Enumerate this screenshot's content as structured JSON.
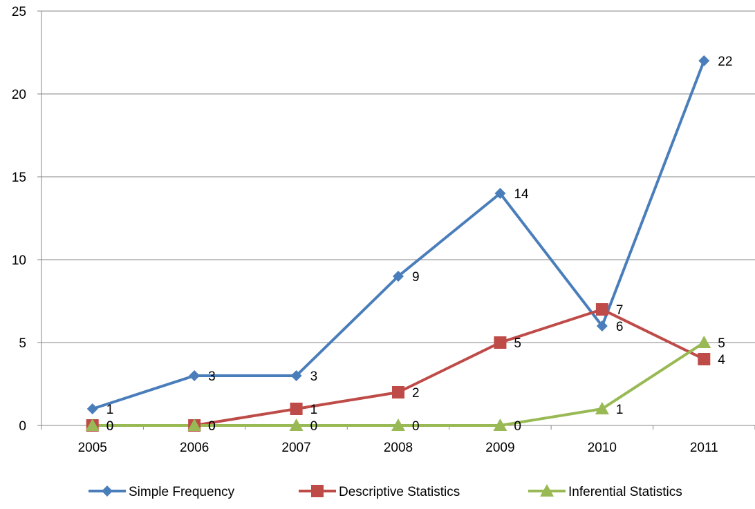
{
  "chart_data": {
    "type": "line",
    "title": "",
    "xlabel": "",
    "ylabel": "",
    "categories": [
      "2005",
      "2006",
      "2007",
      "2008",
      "2009",
      "2010",
      "2011"
    ],
    "ylim": [
      0,
      25
    ],
    "y_ticks": [
      "0",
      "5",
      "10",
      "15",
      "20",
      "25"
    ],
    "grid": "horizontal",
    "legend_position": "bottom",
    "series": [
      {
        "name": "Simple Frequency",
        "values": [
          1,
          3,
          3,
          9,
          14,
          6,
          22
        ],
        "color": "#4a7ebb",
        "marker": "diamond"
      },
      {
        "name": "Descriptive Statistics",
        "values": [
          0,
          0,
          1,
          2,
          5,
          7,
          4
        ],
        "color": "#be4b48",
        "marker": "square"
      },
      {
        "name": "Inferential Statistics",
        "values": [
          0,
          0,
          0,
          0,
          0,
          1,
          5
        ],
        "color": "#98b954",
        "marker": "triangle"
      }
    ]
  }
}
